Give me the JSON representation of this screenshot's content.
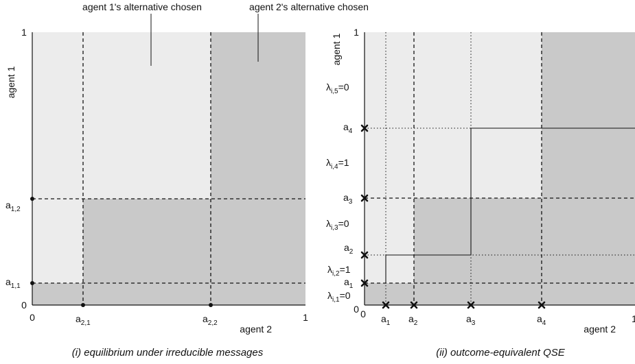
{
  "annotations": {
    "agent1_alt": "agent 1's alternative chosen",
    "agent2_alt": "agent 2's alternative chosen"
  },
  "colors": {
    "light": "#ececec",
    "dark": "#c9c9c9",
    "line": "#111111"
  },
  "left_panel": {
    "caption": "(i) equilibrium under irreducible messages",
    "ylabel": "agent 1",
    "xlabel": "agent 2",
    "y_top": "1",
    "y_zero": "0",
    "x_zero": "0",
    "x_one": "1",
    "a11": {
      "base": "a",
      "sub": "1,1"
    },
    "a12": {
      "base": "a",
      "sub": "1,2"
    },
    "a21": {
      "base": "a",
      "sub": "2,1"
    },
    "a22": {
      "base": "a",
      "sub": "2,2"
    }
  },
  "right_panel": {
    "caption": "(ii) outcome-equivalent QSE",
    "ylabel": "agent 1",
    "xlabel": "agent 2",
    "y_top": "1",
    "origin_zero_a": "0",
    "origin_zero_b": "0",
    "x_one": "1",
    "y_ticks": [
      {
        "base": "a",
        "sub": "4"
      },
      {
        "base": "a",
        "sub": "3"
      },
      {
        "base": "a",
        "sub": "2"
      },
      {
        "base": "a",
        "sub": "1"
      }
    ],
    "x_ticks": [
      {
        "base": "a",
        "sub": "1"
      },
      {
        "base": "a",
        "sub": "2"
      },
      {
        "base": "a",
        "sub": "3"
      },
      {
        "base": "a",
        "sub": "4"
      }
    ],
    "lambdas": [
      {
        "base": "λ",
        "sub": "i,5",
        "val": "=0"
      },
      {
        "base": "λ",
        "sub": "i,4",
        "val": "=1"
      },
      {
        "base": "λ",
        "sub": "i,3",
        "val": "=0"
      },
      {
        "base": "λ",
        "sub": "i,2",
        "val": "=1"
      },
      {
        "base": "λ",
        "sub": "i,1",
        "val": "=0"
      }
    ]
  }
}
